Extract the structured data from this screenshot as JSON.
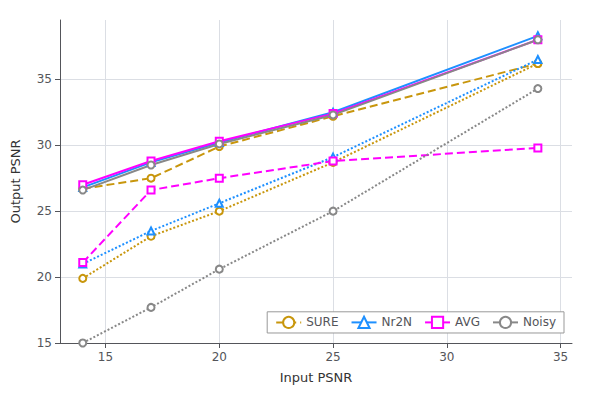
{
  "chart_data": {
    "type": "line",
    "x": [
      14,
      17,
      20,
      25,
      34
    ],
    "series": [
      {
        "name": "SURE",
        "color": "#C8960C",
        "marker": "circle",
        "line_style": "dashed",
        "values": [
          26.7,
          27.5,
          29.9,
          32.2,
          36.2
        ]
      },
      {
        "name": "Nr2N",
        "color": "#1E90FF",
        "marker": "triangle",
        "line_style": "solid",
        "values": [
          26.8,
          28.7,
          30.2,
          32.5,
          38.3
        ]
      },
      {
        "name": "AVG",
        "color": "#FF00FF",
        "marker": "square",
        "line_style": "solid",
        "values": [
          27.0,
          28.8,
          30.3,
          32.4,
          38.0
        ]
      },
      {
        "name": "Noisy",
        "color": "#888888",
        "marker": "circle",
        "line_style": "solid",
        "values": [
          26.6,
          28.5,
          30.1,
          32.3,
          38.0
        ]
      },
      {
        "name": "SURE",
        "color": "#C8960C",
        "marker": "circle",
        "line_style": "dotted",
        "values": [
          19.9,
          23.1,
          25.0,
          28.7,
          36.2
        ]
      },
      {
        "name": "Nr2N",
        "color": "#1E90FF",
        "marker": "triangle",
        "line_style": "dotted",
        "values": [
          21.0,
          23.5,
          25.6,
          29.1,
          36.5
        ]
      },
      {
        "name": "AVG",
        "color": "#FF00FF",
        "marker": "square",
        "line_style": "dashed",
        "values": [
          21.1,
          26.6,
          27.5,
          28.8,
          29.8
        ]
      },
      {
        "name": "Noisy",
        "color": "#888888",
        "marker": "circle",
        "line_style": "dotted",
        "values": [
          15.0,
          17.7,
          20.6,
          25.0,
          34.3
        ]
      }
    ],
    "xlabel": "Input PSNR",
    "ylabel": "Output PSNR",
    "xlim": [
      13.0,
      35.5
    ],
    "ylim": [
      15,
      39.5
    ],
    "xticks": [
      15,
      20,
      25,
      30,
      35
    ],
    "yticks": [
      15,
      20,
      25,
      30,
      35
    ],
    "grid": true,
    "legend": "lower right"
  }
}
